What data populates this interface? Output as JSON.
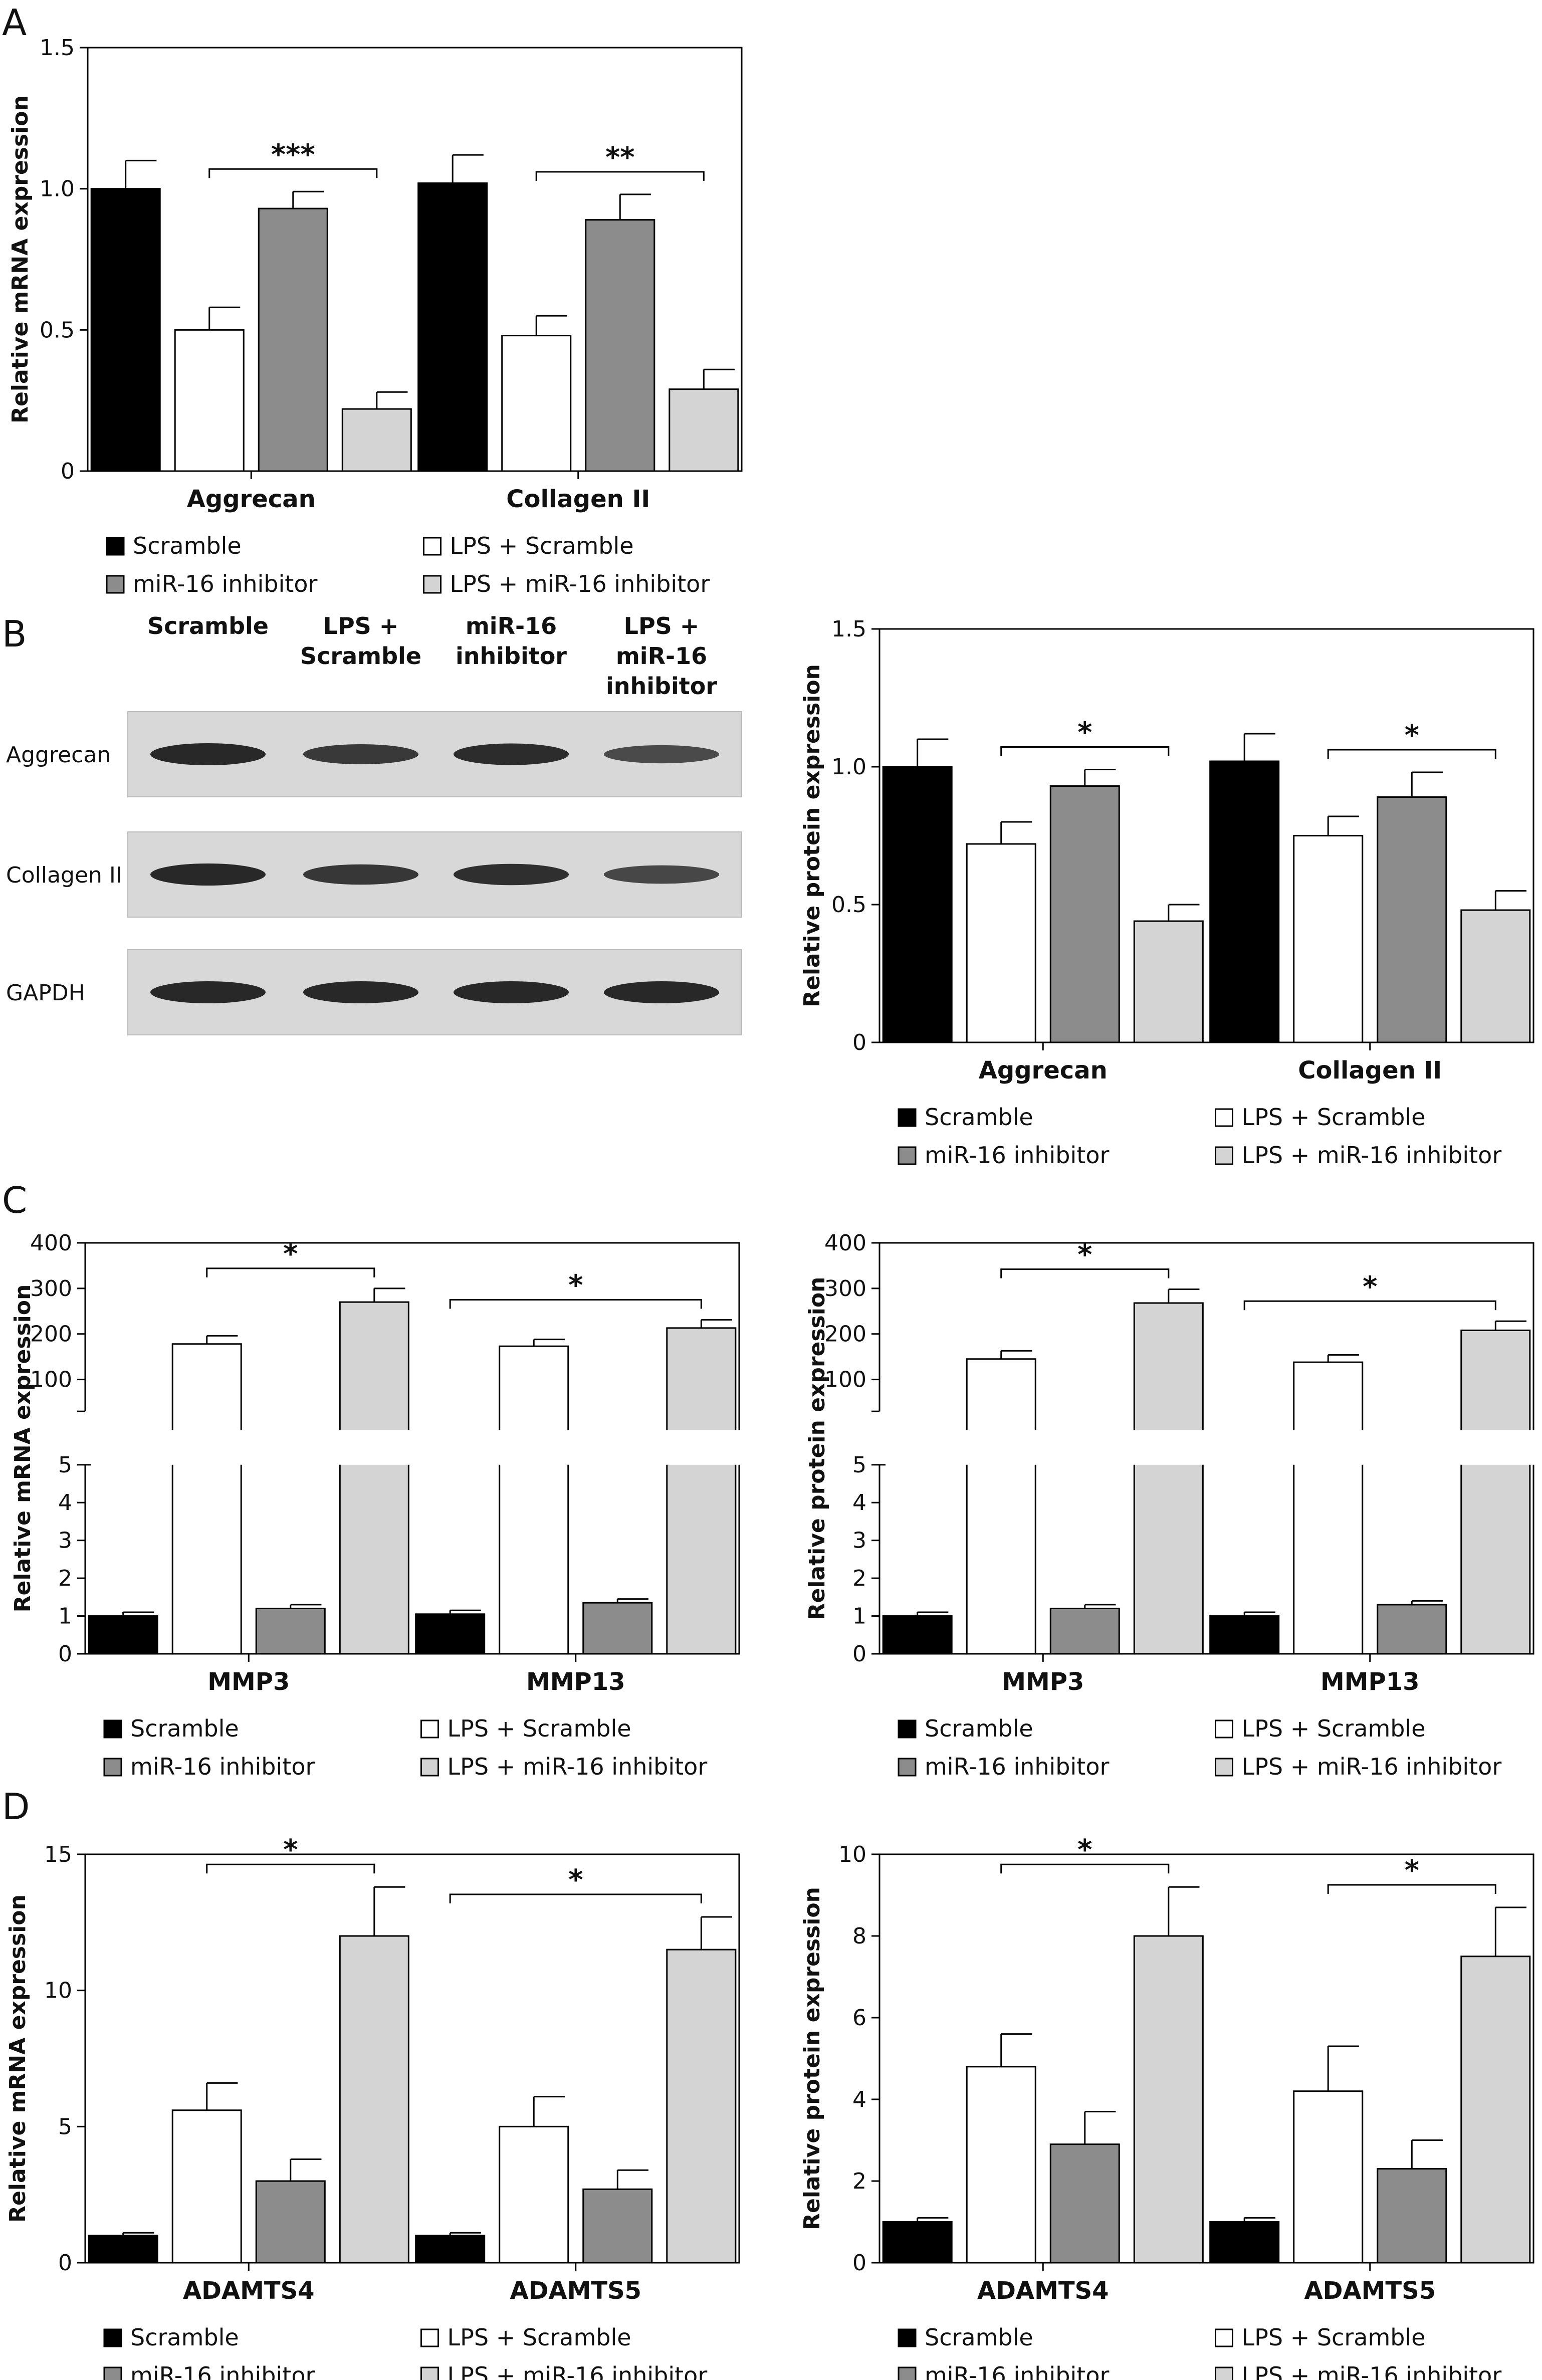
{
  "figure": {
    "panel_letters": [
      "A",
      "B",
      "C",
      "D"
    ],
    "colors": {
      "Scramble": "#000000",
      "LPS + Scramble": "#ffffff",
      "miR-16 inhibitor": "#8c8c8c",
      "LPS + miR-16 inhibitor": "#d4d4d4"
    },
    "legend": [
      "Scramble",
      "LPS + Scramble",
      "miR-16 inhibitor",
      "LPS + miR-16 inhibitor"
    ],
    "western_blot": {
      "columns": [
        "Scramble",
        "LPS +\nScramble",
        "miR-16\ninhibitor",
        "LPS +\nmiR-16\ninhibitor"
      ],
      "rows": [
        "Aggrecan",
        "Collagen II",
        "GAPDH"
      ],
      "band_intensity": [
        [
          1.0,
          0.72,
          0.93,
          0.44
        ],
        [
          1.0,
          0.75,
          0.89,
          0.48
        ],
        [
          1.0,
          1.0,
          1.0,
          1.0
        ]
      ]
    }
  },
  "chart_data": [
    {
      "panel": "A",
      "type": "bar",
      "ylabel": "Relative mRNA expression",
      "categories": [
        "Aggrecan",
        "Collagen II"
      ],
      "ylim": [
        0,
        1.5
      ],
      "yticks": [
        "0",
        "0.5",
        "1.0",
        "1.5"
      ],
      "series": [
        {
          "name": "Scramble",
          "values": [
            1.0,
            1.02
          ],
          "errors": [
            0.1,
            0.1
          ]
        },
        {
          "name": "LPS + Scramble",
          "values": [
            0.5,
            0.48
          ],
          "errors": [
            0.08,
            0.07
          ]
        },
        {
          "name": "miR-16 inhibitor",
          "values": [
            0.93,
            0.89
          ],
          "errors": [
            0.06,
            0.09
          ]
        },
        {
          "name": "LPS + miR-16 inhibitor",
          "values": [
            0.22,
            0.29
          ],
          "errors": [
            0.06,
            0.07
          ]
        }
      ],
      "significance": [
        {
          "category": 0,
          "from": 1,
          "to": 3,
          "label": "***"
        },
        {
          "category": 1,
          "from": 1,
          "to": 3,
          "label": "**"
        }
      ]
    },
    {
      "panel": "B",
      "type": "bar",
      "ylabel": "Relative protein expression",
      "categories": [
        "Aggrecan",
        "Collagen II"
      ],
      "ylim": [
        0,
        1.5
      ],
      "yticks": [
        "0",
        "0.5",
        "1.0",
        "1.5"
      ],
      "series": [
        {
          "name": "Scramble",
          "values": [
            1.0,
            1.02
          ],
          "errors": [
            0.1,
            0.1
          ]
        },
        {
          "name": "LPS + Scramble",
          "values": [
            0.72,
            0.75
          ],
          "errors": [
            0.08,
            0.07
          ]
        },
        {
          "name": "miR-16 inhibitor",
          "values": [
            0.93,
            0.89
          ],
          "errors": [
            0.06,
            0.09
          ]
        },
        {
          "name": "LPS + miR-16 inhibitor",
          "values": [
            0.44,
            0.48
          ],
          "errors": [
            0.06,
            0.07
          ]
        }
      ],
      "significance": [
        {
          "category": 0,
          "from": 1,
          "to": 3,
          "label": "*"
        },
        {
          "category": 1,
          "from": 1,
          "to": 3,
          "label": "*"
        }
      ]
    },
    {
      "panel": "C-left",
      "type": "bar",
      "broken_axis": true,
      "ylabel": "Relative mRNA expression",
      "categories": [
        "MMP3",
        "MMP13"
      ],
      "lower_ylim": [
        0,
        5
      ],
      "lower_yticks": [
        "0",
        "1",
        "2",
        "3",
        "4",
        "5"
      ],
      "upper_ylim": [
        0,
        400
      ],
      "upper_yticks": [
        "100",
        "200",
        "300",
        "400"
      ],
      "series": [
        {
          "name": "Scramble",
          "values": [
            1.0,
            1.05
          ],
          "errors": [
            0.1,
            0.1
          ]
        },
        {
          "name": "LPS + Scramble",
          "values": [
            178,
            173
          ],
          "errors": [
            18,
            15
          ]
        },
        {
          "name": "miR-16 inhibitor",
          "values": [
            1.2,
            1.35
          ],
          "errors": [
            0.1,
            0.1
          ]
        },
        {
          "name": "LPS + miR-16 inhibitor",
          "values": [
            270,
            213
          ],
          "errors": [
            30,
            18
          ]
        }
      ],
      "significance": [
        {
          "category": 0,
          "from": 1,
          "to": 3,
          "label": "*"
        },
        {
          "category": 1,
          "from": 0,
          "to": 3,
          "label": "*"
        }
      ]
    },
    {
      "panel": "C-right",
      "type": "bar",
      "broken_axis": true,
      "ylabel": "Relative protein expression",
      "categories": [
        "MMP3",
        "MMP13"
      ],
      "lower_ylim": [
        0,
        5
      ],
      "lower_yticks": [
        "0",
        "1",
        "2",
        "3",
        "4",
        "5"
      ],
      "upper_ylim": [
        0,
        400
      ],
      "upper_yticks": [
        "100",
        "200",
        "300",
        "400"
      ],
      "series": [
        {
          "name": "Scramble",
          "values": [
            1.0,
            1.0
          ],
          "errors": [
            0.1,
            0.1
          ]
        },
        {
          "name": "LPS + Scramble",
          "values": [
            145,
            138
          ],
          "errors": [
            18,
            16
          ]
        },
        {
          "name": "miR-16 inhibitor",
          "values": [
            1.2,
            1.3
          ],
          "errors": [
            0.1,
            0.1
          ]
        },
        {
          "name": "LPS + miR-16 inhibitor",
          "values": [
            268,
            208
          ],
          "errors": [
            30,
            20
          ]
        }
      ],
      "significance": [
        {
          "category": 0,
          "from": 1,
          "to": 3,
          "label": "*"
        },
        {
          "category": 1,
          "from": 0,
          "to": 3,
          "label": "*"
        }
      ]
    },
    {
      "panel": "D-left",
      "type": "bar",
      "ylabel": "Relative mRNA expression",
      "categories": [
        "ADAMTS4",
        "ADAMTS5"
      ],
      "ylim": [
        0,
        15
      ],
      "yticks": [
        "0",
        "5",
        "10",
        "15"
      ],
      "series": [
        {
          "name": "Scramble",
          "values": [
            1.0,
            1.0
          ],
          "errors": [
            0.1,
            0.1
          ]
        },
        {
          "name": "LPS + Scramble",
          "values": [
            5.6,
            5.0
          ],
          "errors": [
            1.0,
            1.1
          ]
        },
        {
          "name": "miR-16 inhibitor",
          "values": [
            3.0,
            2.7
          ],
          "errors": [
            0.8,
            0.7
          ]
        },
        {
          "name": "LPS + miR-16 inhibitor",
          "values": [
            12.0,
            11.5
          ],
          "errors": [
            1.8,
            1.2
          ]
        }
      ],
      "significance": [
        {
          "category": 0,
          "from": 1,
          "to": 3,
          "label": "*"
        },
        {
          "category": 1,
          "from": 0,
          "to": 3,
          "label": "*"
        }
      ]
    },
    {
      "panel": "D-right",
      "type": "bar",
      "ylabel": "Relative protein expression",
      "categories": [
        "ADAMTS4",
        "ADAMTS5"
      ],
      "ylim": [
        0,
        10
      ],
      "yticks": [
        "0",
        "2",
        "4",
        "6",
        "8",
        "10"
      ],
      "series": [
        {
          "name": "Scramble",
          "values": [
            1.0,
            1.0
          ],
          "errors": [
            0.1,
            0.1
          ]
        },
        {
          "name": "LPS + Scramble",
          "values": [
            4.8,
            4.2
          ],
          "errors": [
            0.8,
            1.1
          ]
        },
        {
          "name": "miR-16 inhibitor",
          "values": [
            2.9,
            2.3
          ],
          "errors": [
            0.8,
            0.7
          ]
        },
        {
          "name": "LPS + miR-16 inhibitor",
          "values": [
            8.0,
            7.5
          ],
          "errors": [
            1.2,
            1.2
          ]
        }
      ],
      "significance": [
        {
          "category": 0,
          "from": 1,
          "to": 3,
          "label": "*"
        },
        {
          "category": 1,
          "from": 1,
          "to": 3,
          "label": "*"
        }
      ]
    }
  ]
}
